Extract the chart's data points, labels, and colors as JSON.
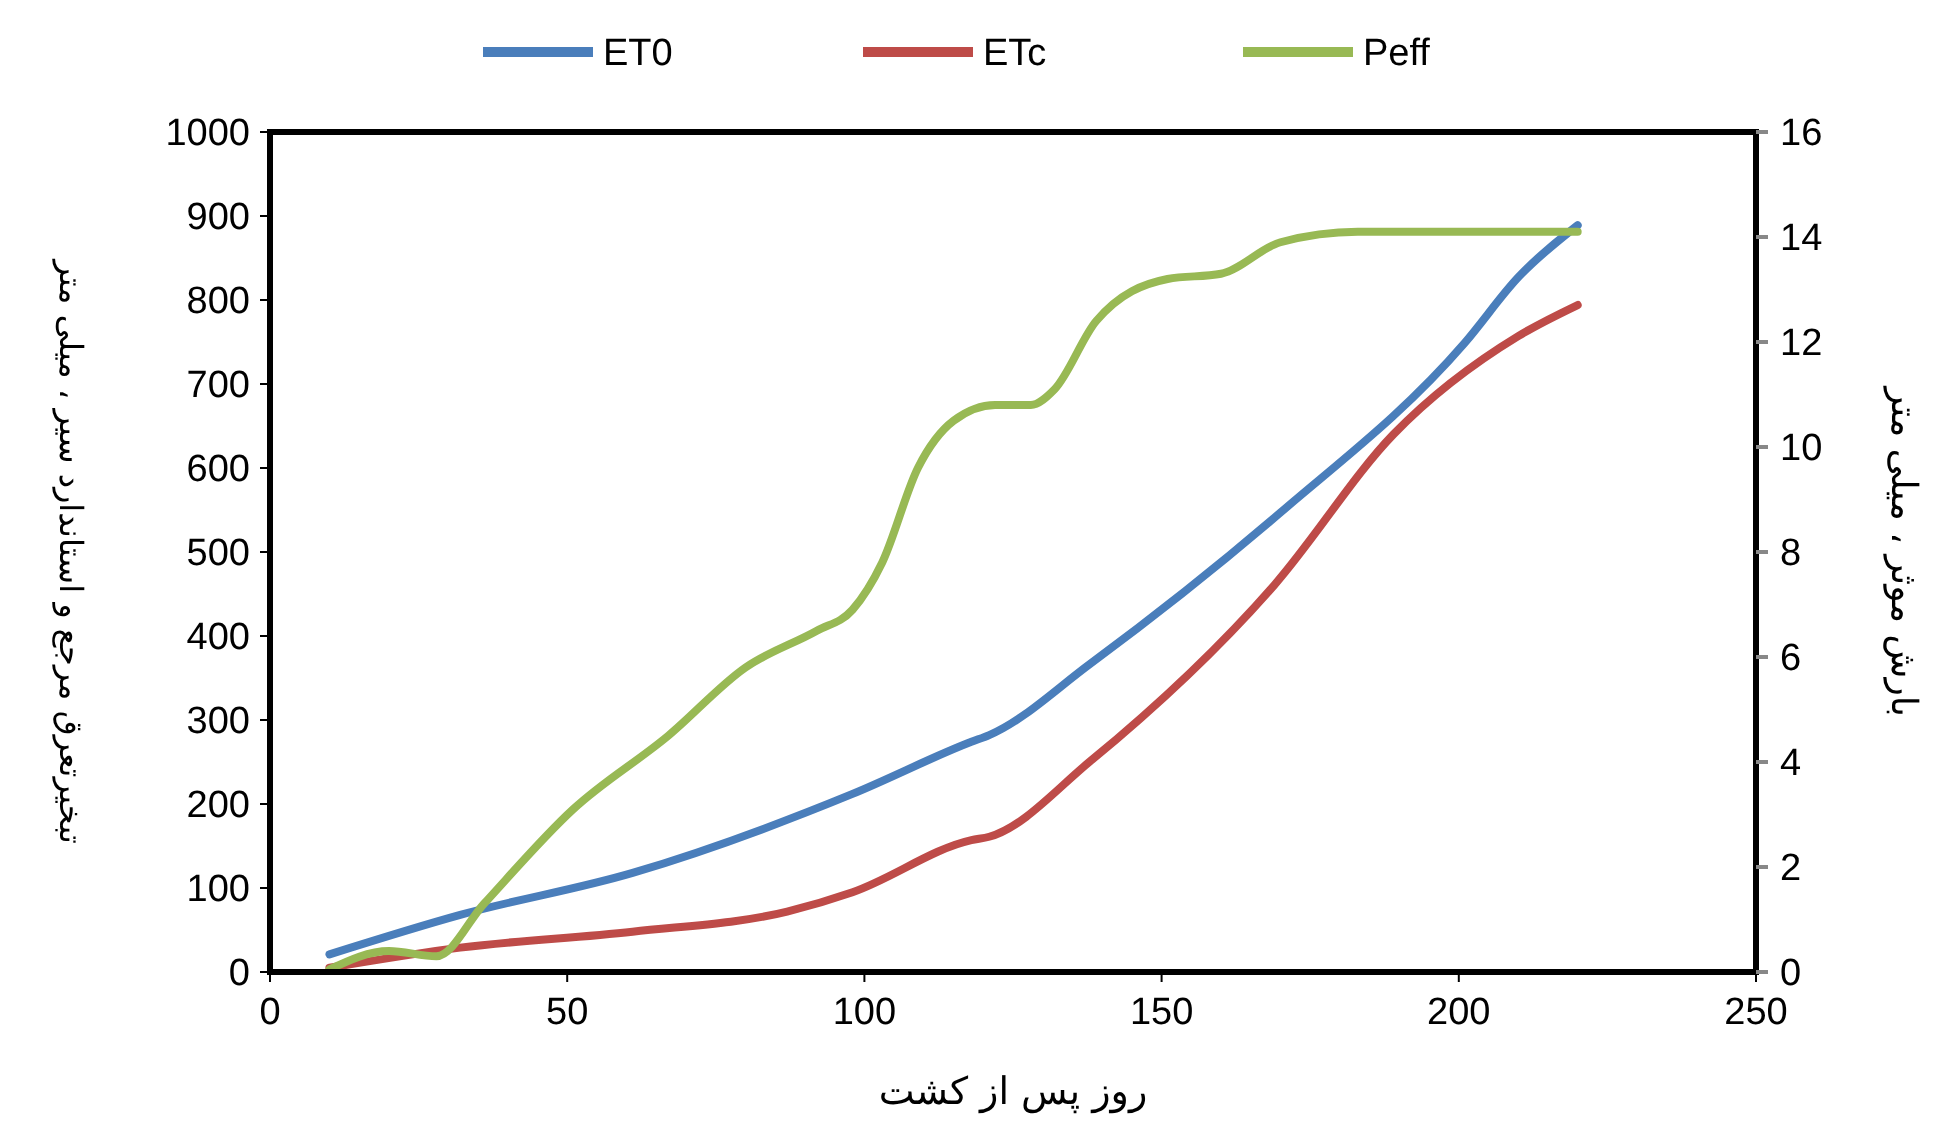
{
  "chart_data": {
    "type": "line",
    "xlabel": "روز پس از کشت",
    "ylabel": "تبخیرتعرق مرجع و استاندارد سیر ، میلی متر",
    "y2label": "بارش موثر ، میلی متر",
    "xlim": [
      0,
      250
    ],
    "xticks": [
      0,
      50,
      100,
      150,
      200,
      250
    ],
    "ylim": [
      0,
      1000
    ],
    "yticks": [
      0,
      100,
      200,
      300,
      400,
      500,
      600,
      700,
      800,
      900,
      1000
    ],
    "y2lim": [
      0,
      16
    ],
    "y2ticks": [
      0,
      2,
      4,
      6,
      8,
      10,
      12,
      14,
      16
    ],
    "legend": "top",
    "grid": false,
    "marker": "none",
    "line_style": "solid",
    "series": [
      {
        "name": "ET0",
        "color": "#4a7ebb",
        "x": [
          10,
          32,
          61,
          98,
          118,
          121,
          138,
          170,
          201,
          210,
          220
        ],
        "values": [
          21,
          68,
          118,
          212,
          274,
          282,
          367,
          547,
          749,
          827,
          889
        ]
      },
      {
        "name": "ETc",
        "color": "#be4b48",
        "x": [
          10,
          32,
          61,
          87,
          98,
          118,
          121,
          138,
          169,
          189,
          210,
          220
        ],
        "values": [
          5,
          29,
          48,
          72,
          95,
          157,
          161,
          251,
          461,
          640,
          757,
          794
        ]
      },
      {
        "name": "Peff",
        "color": "#98b954",
        "axis": "y2",
        "x": [
          10,
          20,
          28,
          36,
          51,
          67,
          80,
          92,
          98,
          103,
          109,
          115,
          122,
          128,
          132,
          139,
          151,
          160,
          170,
          183,
          220
        ],
        "values": [
          0.05,
          0.4,
          0.3,
          1.3,
          3.1,
          4.5,
          5.8,
          6.5,
          6.9,
          7.8,
          9.6,
          10.5,
          10.8,
          10.8,
          11.1,
          12.4,
          13.2,
          13.3,
          13.9,
          14.1,
          14.1
        ]
      }
    ]
  }
}
